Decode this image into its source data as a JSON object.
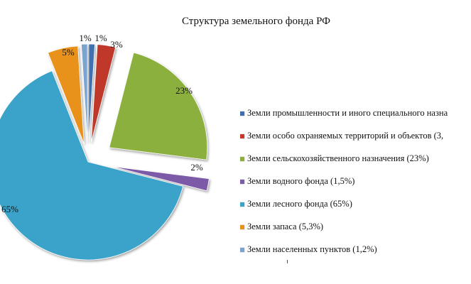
{
  "chart_data": {
    "type": "pie",
    "title": "Структура земельного фонда РФ",
    "slices": [
      {
        "key": "industry",
        "value": 1,
        "label": "1%",
        "legend": "Земли промышленности и иного специального назна",
        "color": "#3f6fb0"
      },
      {
        "key": "protected",
        "value": 3,
        "label": "3%",
        "legend": "Земли особо охраняемых  территорий и объектов  (3,",
        "color": "#c0392b"
      },
      {
        "key": "agriculture",
        "value": 23,
        "label": "23%",
        "legend": "Земли сельскохозяйственного  назначения (23%)",
        "color": "#8cb03c"
      },
      {
        "key": "water",
        "value": 2,
        "label": "2%",
        "legend": "Земли водного фонда (1,5%)",
        "color": "#7d5aa8"
      },
      {
        "key": "forest",
        "value": 65,
        "label": "65%",
        "legend": "Земли лесного фонда (65%)",
        "color": "#3ba3c9"
      },
      {
        "key": "reserve",
        "value": 5,
        "label": "5%",
        "legend": "Земли запаса (5,3%)",
        "color": "#e8921e"
      },
      {
        "key": "settlements",
        "value": 1,
        "label": "1%",
        "legend": "Земли населенных пунктов (1,2%)",
        "color": "#79a4cf"
      }
    ],
    "legend_position": "right"
  }
}
